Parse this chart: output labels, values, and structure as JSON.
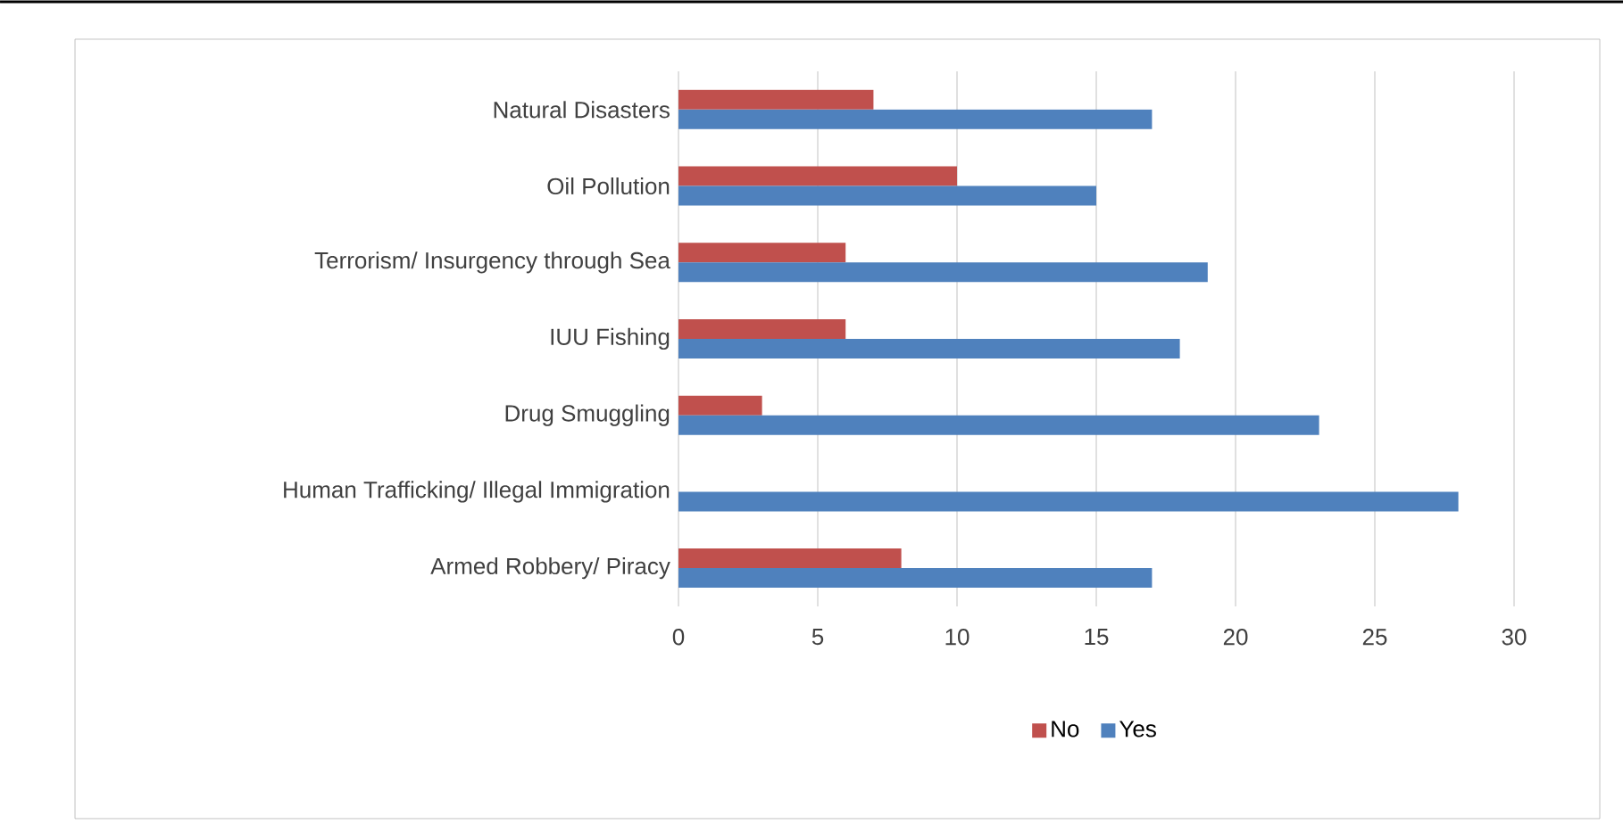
{
  "chart_data": {
    "type": "bar",
    "orientation": "horizontal",
    "categories": [
      "Natural Disasters",
      "Oil Pollution",
      "Terrorism/ Insurgency through Sea",
      "IUU Fishing",
      "Drug Smuggling",
      "Human Trafficking/ Illegal Immigration",
      "Armed Robbery/ Piracy"
    ],
    "series": [
      {
        "name": "No",
        "color": "#c0504d",
        "values": [
          7,
          10,
          6,
          6,
          3,
          0,
          8
        ]
      },
      {
        "name": "Yes",
        "color": "#4f81bd",
        "values": [
          17,
          15,
          19,
          18,
          23,
          28,
          17
        ]
      }
    ],
    "xlim": [
      0,
      30
    ],
    "xticks": [
      0,
      5,
      10,
      15,
      20,
      25,
      30
    ],
    "grid": "x",
    "legend": "bottom"
  }
}
